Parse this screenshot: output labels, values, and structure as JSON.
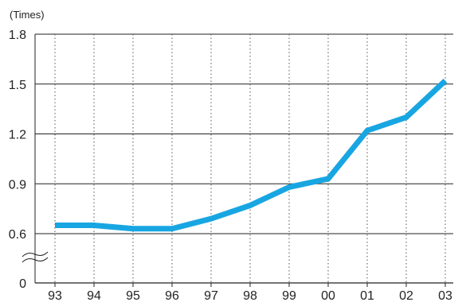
{
  "chart_data": {
    "type": "line",
    "unit_label": "(Times)",
    "title": "",
    "xlabel": "",
    "ylabel": "",
    "categories": [
      "93",
      "94",
      "95",
      "96",
      "97",
      "98",
      "99",
      "00",
      "01",
      "02",
      "03"
    ],
    "series": [
      {
        "values": [
          0.65,
          0.65,
          0.63,
          0.63,
          0.69,
          0.77,
          0.88,
          0.93,
          1.22,
          1.3,
          1.52
        ]
      }
    ],
    "y_ticks": [
      "0",
      "0.6",
      "0.9",
      "1.2",
      "1.5",
      "1.8"
    ],
    "ylim": [
      0,
      1.8
    ],
    "y_axis_break": "between 0 and 0.6",
    "grid": {
      "horizontal": "solid",
      "vertical": "dotted"
    },
    "line_color": "#18a6e2",
    "legend": "none"
  }
}
